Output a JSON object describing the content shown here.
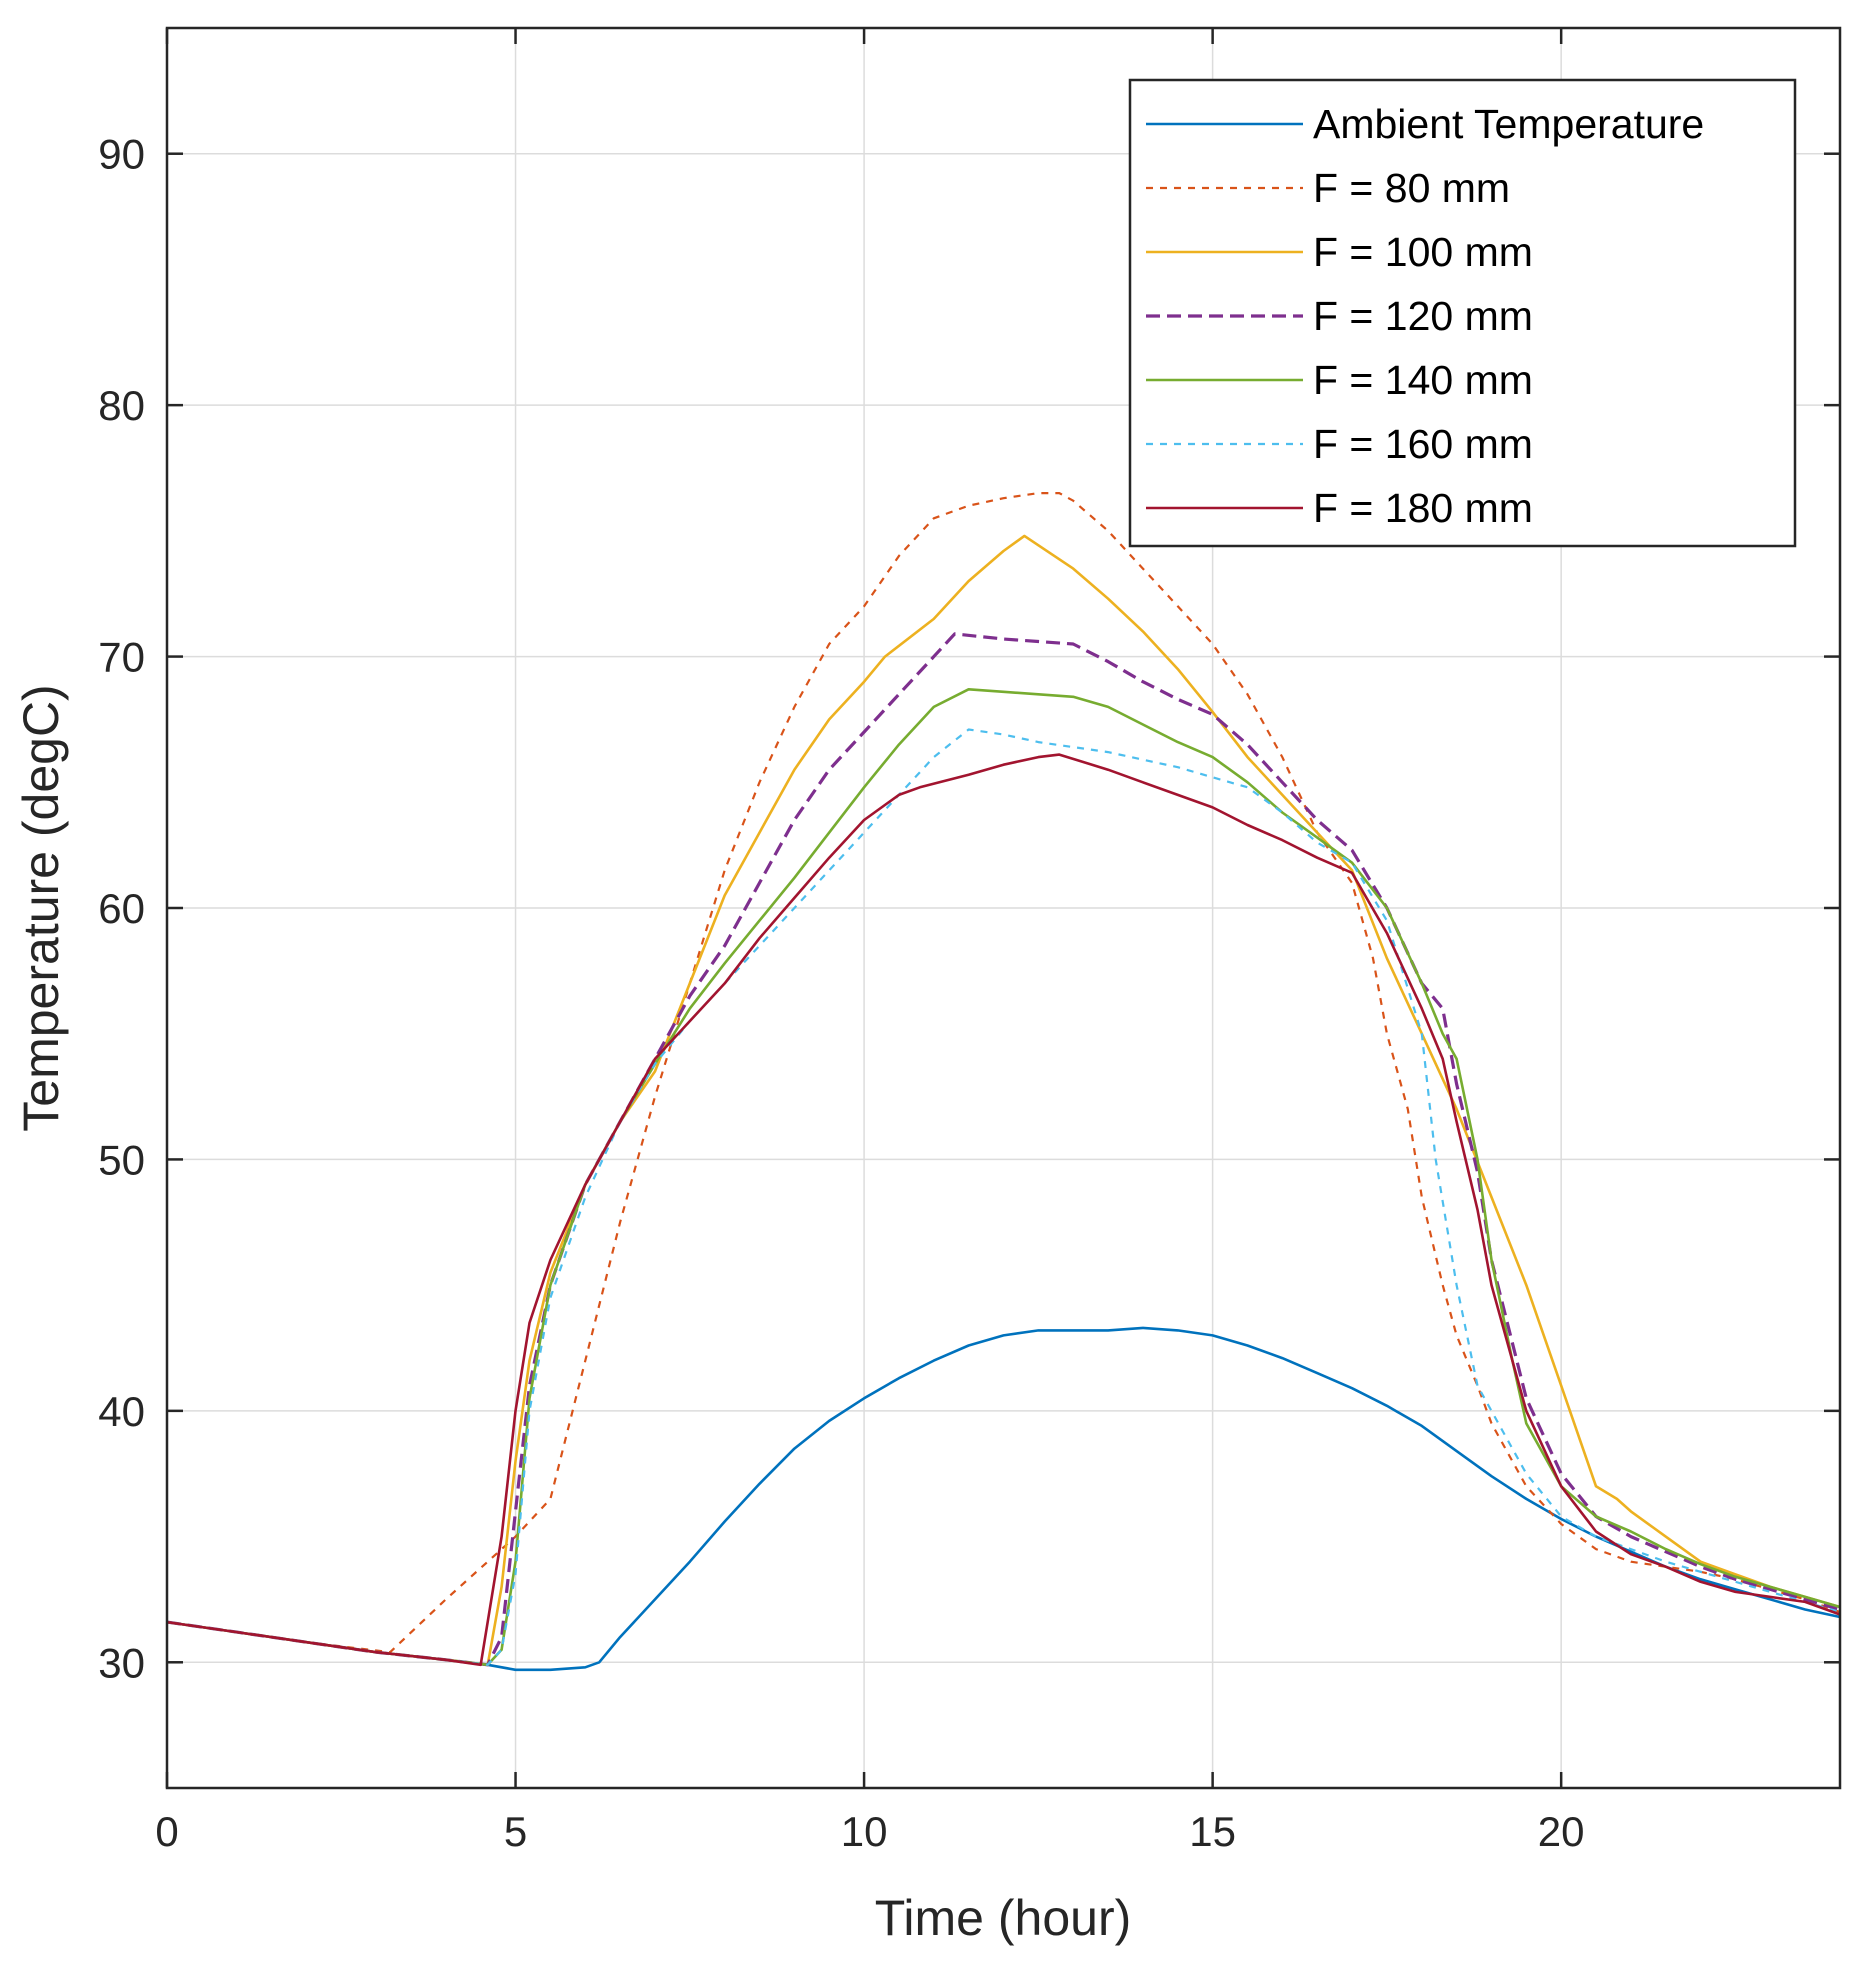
{
  "chart_data": {
    "type": "line",
    "title": "",
    "xlabel": "Time (hour)",
    "ylabel": "Temperature (degC)",
    "xlim": [
      0,
      24
    ],
    "ylim": [
      25,
      95
    ],
    "xticks": [
      0,
      5,
      10,
      15,
      20
    ],
    "yticks": [
      30,
      40,
      50,
      60,
      70,
      80,
      90
    ],
    "grid": true,
    "legend_position": "top-right",
    "series": [
      {
        "name": "Ambient Temperature",
        "color": "#0072BD",
        "dash": "solid",
        "x": [
          0,
          1,
          2,
          3,
          4,
          4.6,
          5.0,
          5.5,
          6.0,
          6.2,
          6.5,
          7,
          7.5,
          8,
          8.5,
          9,
          9.5,
          10,
          10.5,
          11,
          11.5,
          12,
          12.5,
          13,
          13.5,
          14,
          14.5,
          15,
          15.5,
          16,
          16.5,
          17,
          17.5,
          18,
          18.5,
          19,
          19.5,
          20,
          20.5,
          21,
          21.5,
          22,
          22.5,
          23,
          23.5,
          24
        ],
        "y": [
          31.6,
          31.2,
          30.8,
          30.4,
          30.1,
          29.9,
          29.7,
          29.7,
          29.8,
          30.0,
          31.0,
          32.5,
          34.0,
          35.6,
          37.1,
          38.5,
          39.6,
          40.5,
          41.3,
          42.0,
          42.6,
          43.0,
          43.2,
          43.2,
          43.2,
          43.3,
          43.2,
          43.0,
          42.6,
          42.1,
          41.5,
          40.9,
          40.2,
          39.4,
          38.4,
          37.4,
          36.5,
          35.7,
          35.0,
          34.4,
          33.8,
          33.3,
          32.9,
          32.5,
          32.1,
          31.8
        ]
      },
      {
        "name": "F = 80 mm",
        "color": "#D95319",
        "dash": "dotted",
        "x": [
          0,
          1,
          2,
          3.2,
          4.0,
          5.0,
          5.5,
          6.0,
          6.5,
          7.0,
          7.5,
          8.0,
          8.5,
          9.0,
          9.5,
          10.0,
          10.5,
          11.0,
          11.5,
          12.0,
          12.5,
          12.8,
          13.0,
          13.5,
          14.0,
          14.5,
          15.0,
          15.5,
          16.0,
          16.5,
          17.0,
          17.3,
          17.5,
          17.8,
          18.0,
          18.3,
          18.5,
          18.8,
          19.0,
          19.5,
          20.0,
          20.5,
          21.0,
          21.5,
          22.0,
          22.5,
          23.0,
          23.5,
          24.0
        ],
        "y": [
          31.6,
          31.2,
          30.8,
          30.4,
          32.5,
          35.0,
          36.5,
          42.0,
          47.5,
          52.5,
          57.0,
          61.5,
          65.0,
          68.0,
          70.5,
          72.0,
          74.0,
          75.5,
          76.0,
          76.3,
          76.5,
          76.5,
          76.2,
          75.0,
          73.5,
          72.0,
          70.5,
          68.5,
          66.0,
          63.0,
          61.0,
          58.0,
          55.0,
          52.0,
          48.5,
          45.0,
          43.0,
          41.0,
          39.5,
          37.0,
          35.5,
          34.5,
          34.0,
          33.8,
          33.6,
          33.3,
          32.9,
          32.5,
          32.0
        ]
      },
      {
        "name": "F = 100 mm",
        "color": "#EDB120",
        "dash": "solid",
        "x": [
          0,
          1,
          2,
          3,
          4,
          4.6,
          4.8,
          5.0,
          5.2,
          5.5,
          6.0,
          6.5,
          7.0,
          7.5,
          8.0,
          8.5,
          9.0,
          9.5,
          10.0,
          10.3,
          11.0,
          11.5,
          12.0,
          12.3,
          13.0,
          13.5,
          14.0,
          14.5,
          15.0,
          15.5,
          16.0,
          16.5,
          17.0,
          17.5,
          18.0,
          18.5,
          19.0,
          19.5,
          20.0,
          20.5,
          20.8,
          21.0,
          21.5,
          22.0,
          22.5,
          23.0,
          23.5,
          24.0
        ],
        "y": [
          31.6,
          31.2,
          30.8,
          30.4,
          30.1,
          29.9,
          33.0,
          38.0,
          42.0,
          45.5,
          49.0,
          51.5,
          53.5,
          57.0,
          60.5,
          63.0,
          65.5,
          67.5,
          69.0,
          70.0,
          71.5,
          73.0,
          74.2,
          74.8,
          73.5,
          72.3,
          71.0,
          69.5,
          67.8,
          66.0,
          64.5,
          63.0,
          61.5,
          58.0,
          55.0,
          52.0,
          48.5,
          45.0,
          41.0,
          37.0,
          36.5,
          36.0,
          35.0,
          34.0,
          33.5,
          33.0,
          32.6,
          32.2
        ]
      },
      {
        "name": "F = 120 mm",
        "color": "#7E2F8E",
        "dash": "dashed",
        "x": [
          0,
          1,
          2,
          3,
          4,
          4.6,
          4.8,
          5.0,
          5.2,
          5.5,
          6.0,
          6.5,
          7.0,
          7.5,
          8.0,
          8.5,
          9.0,
          9.5,
          10.0,
          10.5,
          11.0,
          11.3,
          12.0,
          12.5,
          13.0,
          13.5,
          14.0,
          14.5,
          15.0,
          15.5,
          16.0,
          16.5,
          17.0,
          17.5,
          18.0,
          18.3,
          18.5,
          18.8,
          19.0,
          19.5,
          20.0,
          20.5,
          21.0,
          21.5,
          22.0,
          22.5,
          23.0,
          23.5,
          24.0
        ],
        "y": [
          31.6,
          31.2,
          30.8,
          30.4,
          30.1,
          29.9,
          31.0,
          36.0,
          41.0,
          45.0,
          49.0,
          51.5,
          54.0,
          56.5,
          58.5,
          61.0,
          63.5,
          65.5,
          67.0,
          68.5,
          70.0,
          70.9,
          70.7,
          70.6,
          70.5,
          69.8,
          69.0,
          68.3,
          67.7,
          66.5,
          65.0,
          63.5,
          62.3,
          60.0,
          57.0,
          56.0,
          53.0,
          49.5,
          46.0,
          40.5,
          37.5,
          35.8,
          35.0,
          34.4,
          33.8,
          33.3,
          32.9,
          32.5,
          32.1
        ]
      },
      {
        "name": "F = 140 mm",
        "color": "#77AC30",
        "dash": "solid",
        "x": [
          0,
          1,
          2,
          3,
          4,
          4.6,
          4.8,
          5.0,
          5.2,
          5.5,
          6.0,
          6.5,
          7.0,
          7.5,
          8.0,
          8.5,
          9.0,
          9.5,
          10.0,
          10.5,
          11.0,
          11.5,
          12.0,
          12.5,
          13.0,
          13.5,
          14.0,
          14.5,
          15.0,
          15.5,
          16.0,
          16.5,
          17.0,
          17.5,
          18.0,
          18.3,
          18.5,
          18.8,
          19.0,
          19.3,
          19.5,
          20.0,
          20.5,
          21.0,
          21.5,
          22.0,
          22.5,
          23.0,
          23.5,
          24.0
        ],
        "y": [
          31.6,
          31.2,
          30.8,
          30.4,
          30.1,
          29.9,
          30.5,
          34.0,
          40.5,
          45.0,
          49.0,
          51.5,
          53.8,
          56.0,
          57.8,
          59.5,
          61.2,
          63.0,
          64.8,
          66.5,
          68.0,
          68.7,
          68.6,
          68.5,
          68.4,
          68.0,
          67.3,
          66.6,
          66.0,
          65.0,
          63.8,
          62.8,
          61.8,
          60.0,
          57.0,
          55.0,
          54.0,
          50.0,
          46.0,
          42.0,
          39.5,
          37.0,
          35.8,
          35.2,
          34.5,
          33.9,
          33.4,
          33.0,
          32.6,
          32.2
        ]
      },
      {
        "name": "F = 160 mm",
        "color": "#4DBEEE",
        "dash": "dotted",
        "x": [
          0,
          1,
          2,
          3,
          4,
          4.6,
          4.8,
          5.0,
          5.2,
          5.5,
          6.0,
          6.5,
          7.0,
          7.5,
          8.0,
          8.5,
          9.0,
          9.5,
          10.0,
          10.5,
          11.0,
          11.5,
          12.0,
          12.5,
          13.0,
          13.5,
          14.0,
          14.5,
          15.0,
          15.5,
          16.0,
          16.5,
          17.0,
          17.5,
          18.0,
          18.2,
          18.5,
          18.8,
          19.0,
          19.5,
          20.0,
          20.5,
          21.0,
          21.5,
          22.0,
          22.5,
          23.0,
          23.5,
          24.0
        ],
        "y": [
          31.6,
          31.2,
          30.8,
          30.4,
          30.1,
          29.9,
          30.5,
          33.5,
          40.0,
          44.5,
          48.5,
          51.5,
          53.8,
          55.5,
          57.0,
          58.5,
          60.0,
          61.5,
          63.0,
          64.5,
          66.0,
          67.1,
          66.9,
          66.6,
          66.4,
          66.2,
          65.9,
          65.6,
          65.2,
          64.8,
          63.8,
          62.6,
          61.8,
          59.5,
          55.0,
          50.0,
          45.0,
          41.0,
          40.0,
          37.5,
          35.8,
          35.0,
          34.5,
          34.0,
          33.6,
          33.2,
          32.8,
          32.4,
          32.0
        ]
      },
      {
        "name": "F = 180 mm",
        "color": "#A2142F",
        "dash": "solid",
        "x": [
          0,
          1,
          2,
          3,
          4,
          4.5,
          4.8,
          5.0,
          5.2,
          5.5,
          6.0,
          6.5,
          7.0,
          7.5,
          8.0,
          8.5,
          9.0,
          9.5,
          10.0,
          10.5,
          10.8,
          11.5,
          12.0,
          12.5,
          12.8,
          13.5,
          14.0,
          14.5,
          15.0,
          15.5,
          16.0,
          16.5,
          17.0,
          17.5,
          18.0,
          18.3,
          18.5,
          18.8,
          19.0,
          19.5,
          20.0,
          20.5,
          21.0,
          21.5,
          22.0,
          22.5,
          23.0,
          23.5,
          24.0
        ],
        "y": [
          31.6,
          31.2,
          30.8,
          30.4,
          30.1,
          29.9,
          35.0,
          40.0,
          43.5,
          46.0,
          49.0,
          51.5,
          54.0,
          55.5,
          57.0,
          58.8,
          60.4,
          62.0,
          63.5,
          64.5,
          64.8,
          65.3,
          65.7,
          66.0,
          66.1,
          65.5,
          65.0,
          64.5,
          64.0,
          63.3,
          62.7,
          62.0,
          61.4,
          59.0,
          56.0,
          54.0,
          51.5,
          48.0,
          45.0,
          40.0,
          37.0,
          35.2,
          34.3,
          33.8,
          33.2,
          32.8,
          32.6,
          32.4,
          31.9
        ]
      }
    ]
  }
}
